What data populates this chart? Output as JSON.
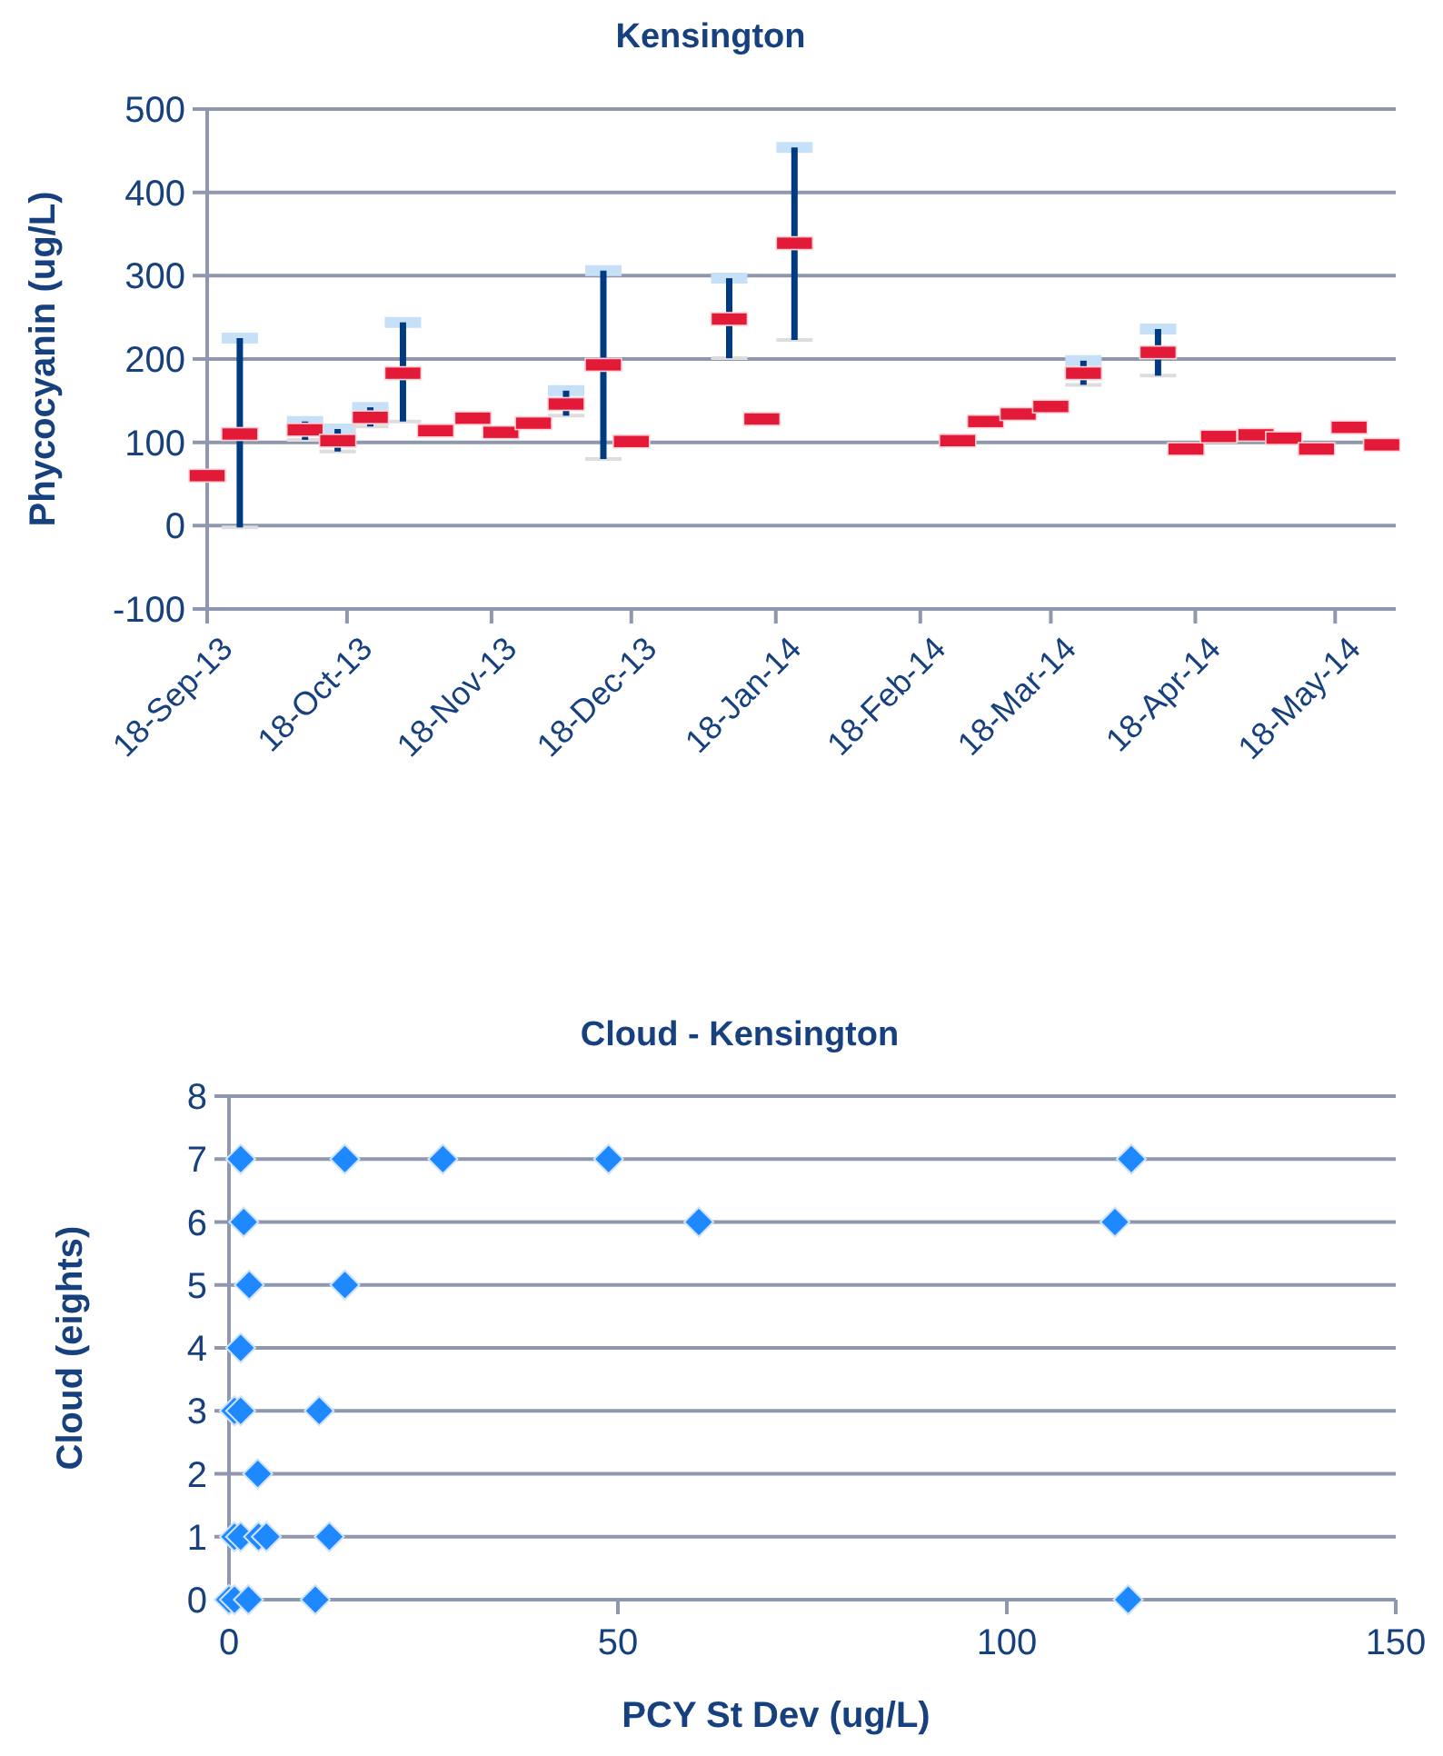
{
  "chart_data": [
    {
      "type": "scatter",
      "title": "Kensington",
      "ylabel": "Phycocyanin (ug/L)",
      "x": [
        "2013-09-18",
        "2013-09-25",
        "2013-10-09",
        "2013-10-16",
        "2013-10-23",
        "2013-10-30",
        "2013-11-06",
        "2013-11-14",
        "2013-11-20",
        "2013-11-27",
        "2013-12-04",
        "2013-12-12",
        "2013-12-18",
        "2014-01-08",
        "2014-01-15",
        "2014-01-22",
        "2014-02-26",
        "2014-03-04",
        "2014-03-11",
        "2014-03-18",
        "2014-03-25",
        "2014-04-10",
        "2014-04-16",
        "2014-04-23",
        "2014-05-01",
        "2014-05-07",
        "2014-05-14",
        "2014-05-21",
        "2014-05-28"
      ],
      "xlim": [
        "2013-09-18",
        "2014-05-31"
      ],
      "xticks": [
        {
          "value": "2013-09-18",
          "label": "18-Sep-13"
        },
        {
          "value": "2013-10-18",
          "label": "18-Oct-13"
        },
        {
          "value": "2013-11-18",
          "label": "18-Nov-13"
        },
        {
          "value": "2013-12-18",
          "label": "18-Dec-13"
        },
        {
          "value": "2014-01-18",
          "label": "18-Jan-14"
        },
        {
          "value": "2014-02-18",
          "label": "18-Feb-14"
        },
        {
          "value": "2014-03-18",
          "label": "18-Mar-14"
        },
        {
          "value": "2014-04-18",
          "label": "18-Apr-14"
        },
        {
          "value": "2014-05-18",
          "label": "18-May-14"
        }
      ],
      "ylim": [
        -100,
        500
      ],
      "yticks": [
        -100,
        0,
        100,
        200,
        300,
        400,
        500
      ],
      "grid": "y",
      "series": [
        {
          "color": "#e31a37",
          "values": [
            60,
            110,
            115,
            102,
            130,
            183,
            114,
            129,
            112,
            123,
            146,
            193,
            101,
            248,
            128,
            339,
            102,
            125,
            134,
            143,
            183,
            208,
            92,
            107,
            109,
            105,
            92,
            118,
            97
          ],
          "errors": [
            null,
            [
              -2,
              225
            ],
            [
              103,
              125
            ],
            [
              89,
              116
            ],
            [
              119,
              142
            ],
            [
              125,
              244
            ],
            null,
            null,
            null,
            null,
            [
              132,
              162
            ],
            [
              80,
              306
            ],
            null,
            [
              201,
              297
            ],
            null,
            [
              223,
              454
            ],
            null,
            null,
            null,
            null,
            [
              169,
              198
            ],
            [
              180,
              236
            ],
            null,
            null,
            null,
            null,
            null,
            null,
            null
          ]
        }
      ]
    },
    {
      "type": "scatter",
      "title": "Cloud - Kensington",
      "xlabel": "PCY St Dev (ug/L)",
      "ylabel": "Cloud  (eights)",
      "marker": "diamond",
      "grid": "y",
      "xlim": [
        0,
        150
      ],
      "xticks": [
        0,
        50,
        100,
        150
      ],
      "ylim": [
        0,
        8
      ],
      "yticks": [
        0,
        1,
        2,
        3,
        4,
        5,
        6,
        7,
        8
      ],
      "series": [
        {
          "color": "#1e88ff",
          "x": [
            1.5,
            14.9,
            27.5,
            48.8,
            116,
            1.9,
            60.4,
            113.9,
            2.6,
            14.9,
            1.5,
            0.7,
            1.5,
            11.6,
            3.7,
            0.7,
            1.5,
            3.8,
            4.8,
            12.9,
            0,
            0.7,
            2.5,
            11.1,
            115.6
          ],
          "values": [
            7,
            7,
            7,
            7,
            7,
            6,
            6,
            6,
            5,
            5,
            4,
            3,
            3,
            3,
            2,
            1,
            1,
            1,
            1,
            1,
            0,
            0,
            0,
            0,
            0
          ]
        }
      ]
    }
  ]
}
